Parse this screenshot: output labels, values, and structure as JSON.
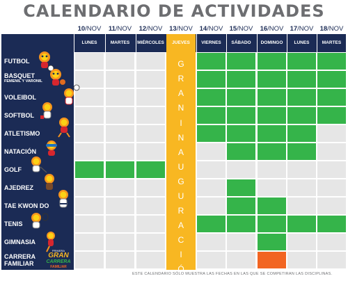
{
  "title": "CALENDARIO DE ACTIVIDADES",
  "dates": [
    {
      "day": "10",
      "month": "/NOV"
    },
    {
      "day": "11",
      "month": "/NOV"
    },
    {
      "day": "12",
      "month": "/NOV"
    },
    {
      "day": "13",
      "month": "/NOV"
    },
    {
      "day": "14",
      "month": "/NOV"
    },
    {
      "day": "15",
      "month": "/NOV"
    },
    {
      "day": "16",
      "month": "/NOV"
    },
    {
      "day": "17",
      "month": "/NOV"
    },
    {
      "day": "18",
      "month": "/NOV"
    }
  ],
  "weekdays": [
    "LUNES",
    "MARTES",
    "MIÉRCOLES",
    "JUEVES",
    "VIERNES",
    "SÁBADO",
    "DOMINGO",
    "LUNES",
    "MARTES"
  ],
  "special_column": {
    "word1": "GRAN",
    "word2": "INAUGURACIÓN"
  },
  "sports": [
    {
      "name": "FUTBOL",
      "days": [
        0,
        0,
        0,
        1,
        1,
        1,
        1,
        1
      ]
    },
    {
      "name": "BASQUET",
      "sub": "FEMENIL Y VARONIL",
      "days": [
        0,
        0,
        0,
        1,
        1,
        1,
        1,
        1
      ]
    },
    {
      "name": "VOLEIBOL",
      "days": [
        0,
        0,
        0,
        1,
        1,
        1,
        1,
        1
      ]
    },
    {
      "name": "SOFTBOL",
      "days": [
        0,
        0,
        0,
        1,
        1,
        1,
        1,
        1
      ]
    },
    {
      "name": "ATLETISMO",
      "days": [
        0,
        0,
        0,
        1,
        1,
        1,
        1,
        0
      ]
    },
    {
      "name": "NATACIÓN",
      "days": [
        0,
        0,
        0,
        0,
        1,
        1,
        1,
        0
      ]
    },
    {
      "name": "GOLF",
      "days": [
        1,
        1,
        1,
        0,
        0,
        0,
        0,
        0
      ]
    },
    {
      "name": "AJEDREZ",
      "days": [
        0,
        0,
        0,
        0,
        1,
        0,
        0,
        0
      ]
    },
    {
      "name": "TAE KWON DO",
      "days": [
        0,
        0,
        0,
        0,
        1,
        1,
        0,
        0
      ]
    },
    {
      "name": "TENIS",
      "days": [
        0,
        0,
        0,
        1,
        1,
        1,
        1,
        1
      ]
    },
    {
      "name": "GIMNASIA",
      "days": [
        0,
        0,
        0,
        0,
        0,
        1,
        0,
        0
      ]
    },
    {
      "name": "CARRERA",
      "sub2": "FAMILIAR",
      "days": [
        0,
        0,
        0,
        0,
        0,
        2,
        0,
        0
      ]
    }
  ],
  "footer": "ESTE CALENDARIO SÓLO MUESTRA LAS FECHAS EN LAS QUE SE COMPETIRAN LAS DISCIPLINAS.",
  "logo_text": [
    "PRIMERA",
    "GRAN",
    "CARRERA",
    "FAMILIAR"
  ],
  "colors": {
    "navy": "#1b2b55",
    "green": "#35b44a",
    "gray": "#e6e6e6",
    "yellow": "#f8b722",
    "orange": "#f26522"
  }
}
